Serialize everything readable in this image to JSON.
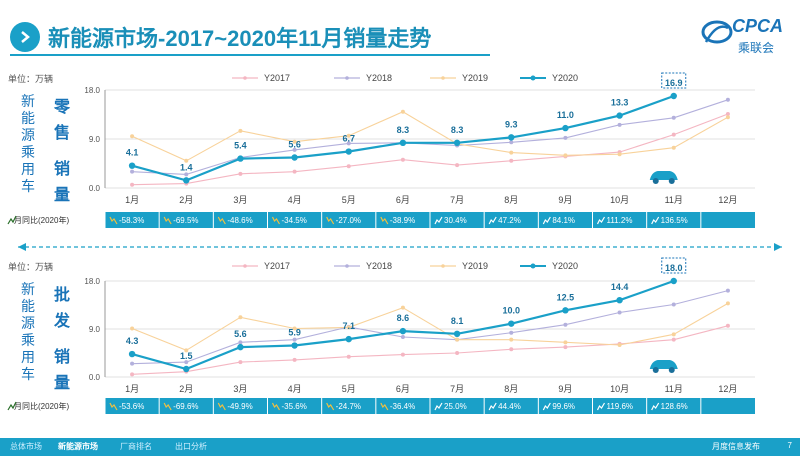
{
  "header": {
    "title_main": "新能源市场",
    "title_rest": "-2017~2020年11月销量走势"
  },
  "logo": {
    "en": "CPCA",
    "cn": "乘联会",
    "brand_color": "#1a74b8"
  },
  "colors": {
    "Y2017": "#f4b6c2",
    "Y2018": "#b3b0dc",
    "Y2019": "#f8d29a",
    "Y2020": "#1aa0c8",
    "table_bg": "#1aa0c8"
  },
  "footer": {
    "items": [
      "总体市场",
      "新能源市场",
      "厂商排名",
      "出口分析"
    ],
    "active_index": 1,
    "right_text": "月度信息发布",
    "page": "7"
  },
  "chart_data": [
    {
      "type": "line",
      "unit": "单位：万辆",
      "side_label_1": "新能源乘用车",
      "side_label_2": "零售销量",
      "categories": [
        "1月",
        "2月",
        "3月",
        "4月",
        "5月",
        "6月",
        "7月",
        "8月",
        "9月",
        "10月",
        "11月",
        "12月"
      ],
      "ylim": [
        0,
        18
      ],
      "yticks": [
        "0.0",
        "9.0",
        "18.0"
      ],
      "series": [
        {
          "name": "Y2017",
          "values": [
            0.6,
            0.8,
            2.6,
            3.0,
            4.0,
            5.2,
            4.2,
            5.0,
            5.8,
            6.6,
            9.8,
            13.6
          ]
        },
        {
          "name": "Y2018",
          "values": [
            3.0,
            2.5,
            5.6,
            7.0,
            8.2,
            8.3,
            7.8,
            8.4,
            9.2,
            11.6,
            12.9,
            16.2
          ]
        },
        {
          "name": "Y2019",
          "values": [
            9.5,
            5.0,
            10.5,
            8.5,
            9.6,
            14.0,
            8.1,
            6.5,
            6.0,
            6.2,
            7.4,
            13.0
          ]
        },
        {
          "name": "Y2020",
          "values": [
            4.1,
            1.4,
            5.4,
            5.6,
            6.7,
            8.3,
            8.3,
            9.3,
            11.0,
            13.3,
            16.9,
            null
          ]
        }
      ],
      "labels": [
        "4.1",
        "1.4",
        "5.4",
        "5.6",
        "6.7",
        "8.3",
        "8.3",
        "9.3",
        "11.0",
        "13.3",
        "16.9"
      ],
      "highlight_index": 10,
      "yoy_label": "月同比(2020年)",
      "yoy": [
        "-58.3%",
        "-69.5%",
        "-48.6%",
        "-34.5%",
        "-27.0%",
        "-38.9%",
        "30.4%",
        "47.2%",
        "84.1%",
        "111.2%",
        "136.5%",
        ""
      ]
    },
    {
      "type": "line",
      "unit": "单位：万辆",
      "side_label_1": "新能源乘用车",
      "side_label_2": "批发销量",
      "categories": [
        "1月",
        "2月",
        "3月",
        "4月",
        "5月",
        "6月",
        "7月",
        "8月",
        "9月",
        "10月",
        "11月",
        "12月"
      ],
      "ylim": [
        0,
        18
      ],
      "yticks": [
        "0.0",
        "9.0",
        "18.0"
      ],
      "series": [
        {
          "name": "Y2017",
          "values": [
            0.5,
            1.0,
            2.8,
            3.2,
            3.8,
            4.2,
            4.5,
            5.2,
            5.6,
            6.2,
            7.0,
            9.6
          ]
        },
        {
          "name": "Y2018",
          "values": [
            2.5,
            2.8,
            6.5,
            7.0,
            9.4,
            7.5,
            7.0,
            8.3,
            9.8,
            12.1,
            13.6,
            16.2
          ]
        },
        {
          "name": "Y2019",
          "values": [
            9.1,
            5.0,
            11.2,
            9.1,
            9.3,
            13.0,
            7.0,
            7.0,
            6.5,
            6.0,
            8.0,
            13.8
          ]
        },
        {
          "name": "Y2020",
          "values": [
            4.3,
            1.5,
            5.6,
            5.9,
            7.1,
            8.6,
            8.1,
            10.0,
            12.5,
            14.4,
            18.0,
            null
          ]
        }
      ],
      "labels": [
        "4.3",
        "1.5",
        "5.6",
        "5.9",
        "7.1",
        "8.6",
        "8.1",
        "10.0",
        "12.5",
        "14.4",
        "18.0"
      ],
      "highlight_index": 10,
      "yoy_label": "月同比(2020年)",
      "yoy": [
        "-53.6%",
        "-69.6%",
        "-49.9%",
        "-35.6%",
        "-24.7%",
        "-36.4%",
        "25.0%",
        "44.4%",
        "99.6%",
        "119.6%",
        "128.6%",
        ""
      ]
    }
  ]
}
